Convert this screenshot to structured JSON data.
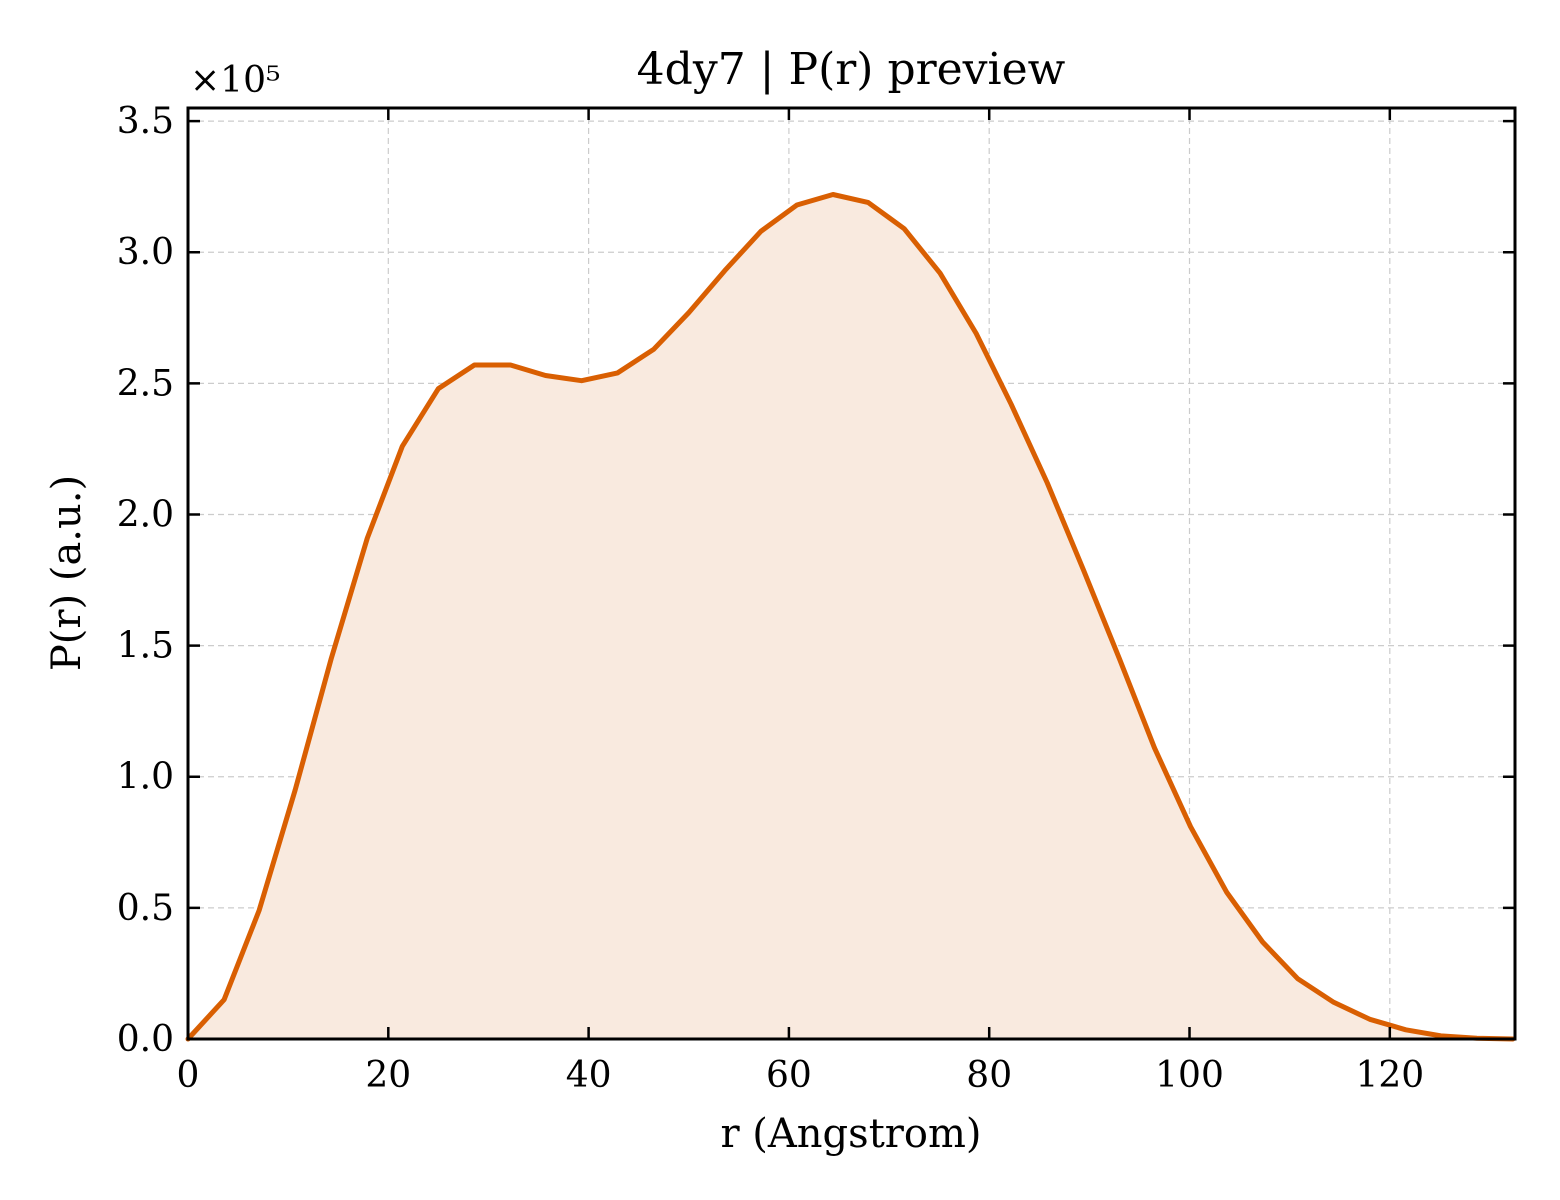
{
  "chart_data": {
    "type": "area",
    "title": "4dy7 | P(r) preview",
    "xlabel": "r (Angstrom)",
    "ylabel": "P(r) (a.u.)",
    "y_multiplier_label": "×10⁵",
    "xlim": [
      0,
      132.5
    ],
    "ylim": [
      0,
      3.55
    ],
    "x_ticks": [
      0,
      20,
      40,
      60,
      80,
      100,
      120
    ],
    "x_tick_labels": [
      "0",
      "20",
      "40",
      "60",
      "80",
      "100",
      "120"
    ],
    "y_ticks": [
      0,
      0.5,
      1.0,
      1.5,
      2.0,
      2.5,
      3.0,
      3.5
    ],
    "y_tick_labels": [
      "0.0",
      "0.5",
      "1.0",
      "1.5",
      "2.0",
      "2.5",
      "3.0",
      "3.5"
    ],
    "grid": true,
    "line_color": "#d95f02",
    "fill_color": "#f9eadf",
    "series": [
      {
        "x": [
          0,
          3.6,
          7.1,
          10.7,
          14.3,
          17.9,
          21.4,
          25.0,
          28.6,
          32.2,
          35.7,
          39.3,
          42.9,
          46.5,
          50.0,
          53.6,
          57.2,
          60.8,
          64.4,
          67.9,
          71.5,
          75.1,
          78.7,
          82.2,
          85.8,
          89.4,
          93.0,
          96.5,
          100.1,
          103.7,
          107.3,
          110.8,
          114.4,
          118.0,
          121.6,
          125.1,
          128.7,
          132.3
        ],
        "values": [
          0.0,
          0.15,
          0.49,
          0.95,
          1.45,
          1.91,
          2.26,
          2.48,
          2.57,
          2.57,
          2.53,
          2.51,
          2.54,
          2.63,
          2.77,
          2.93,
          3.08,
          3.18,
          3.22,
          3.19,
          3.09,
          2.92,
          2.69,
          2.42,
          2.12,
          1.79,
          1.45,
          1.11,
          0.81,
          0.56,
          0.37,
          0.23,
          0.14,
          0.075,
          0.035,
          0.012,
          0.003,
          0.0
        ]
      }
    ]
  }
}
